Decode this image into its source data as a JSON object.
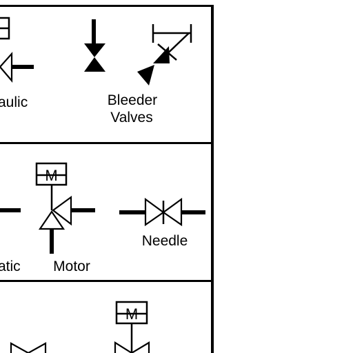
{
  "labels": {
    "hydraulic_partial": "aulic",
    "bleeder_line1": "Bleeder",
    "bleeder_line2": "Valves",
    "pneumatic_partial": "atic",
    "motor": "Motor",
    "needle": "Needle",
    "motor_symbol_letter": "M"
  },
  "colors": {
    "ink": "#000000",
    "paper": "#ffffff"
  }
}
